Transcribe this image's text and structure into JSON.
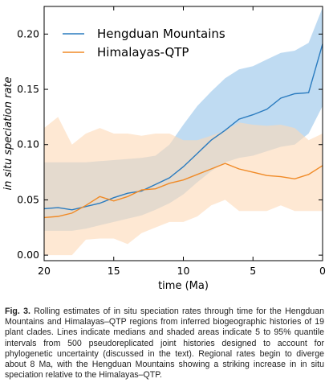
{
  "chart_data": {
    "type": "area",
    "xlabel": "time (Ma)",
    "ylabel": "in situ speciation rate",
    "xlim": [
      20,
      0
    ],
    "ylim": [
      -0.005,
      0.225
    ],
    "x_ticks": [
      20,
      15,
      10,
      5,
      0
    ],
    "y_ticks": [
      0.0,
      0.05,
      0.1,
      0.15,
      0.2
    ],
    "x_tick_labels": [
      "20",
      "15",
      "10",
      "5",
      "0"
    ],
    "y_tick_labels": [
      "0.00",
      "0.05",
      "0.10",
      "0.15",
      "0.20"
    ],
    "grid": false,
    "legend_position": "top-left",
    "series": [
      {
        "name": "Hengduan Mountains",
        "color": "#2a7bbf",
        "band_color": "#aacfee",
        "x": [
          20,
          19,
          18,
          17,
          16,
          15,
          14,
          13,
          12,
          11,
          10,
          9,
          8,
          7,
          6,
          5,
          4,
          3,
          2,
          1,
          0
        ],
        "median": [
          0.042,
          0.043,
          0.041,
          0.044,
          0.047,
          0.052,
          0.056,
          0.058,
          0.064,
          0.07,
          0.08,
          0.092,
          0.104,
          0.113,
          0.123,
          0.127,
          0.132,
          0.142,
          0.146,
          0.147,
          0.191
        ],
        "lower": [
          0.022,
          0.022,
          0.022,
          0.024,
          0.027,
          0.03,
          0.033,
          0.036,
          0.041,
          0.047,
          0.055,
          0.066,
          0.076,
          0.084,
          0.088,
          0.09,
          0.094,
          0.098,
          0.1,
          0.11,
          0.135
        ],
        "upper": [
          0.084,
          0.084,
          0.084,
          0.084,
          0.085,
          0.086,
          0.087,
          0.088,
          0.09,
          0.1,
          0.118,
          0.135,
          0.148,
          0.16,
          0.168,
          0.171,
          0.177,
          0.183,
          0.185,
          0.192,
          0.224
        ]
      },
      {
        "name": "Himalayas-QTP",
        "color": "#f08a26",
        "band_color": "#fdd9b5",
        "x": [
          20,
          19,
          18,
          17,
          16,
          15,
          14,
          13,
          12,
          11,
          10,
          9,
          8,
          7,
          6,
          5,
          4,
          3,
          2,
          1,
          0
        ],
        "median": [
          0.034,
          0.035,
          0.038,
          0.045,
          0.053,
          0.049,
          0.053,
          0.059,
          0.06,
          0.065,
          0.068,
          0.073,
          0.078,
          0.083,
          0.078,
          0.075,
          0.072,
          0.071,
          0.069,
          0.073,
          0.081
        ],
        "lower": [
          0.0,
          0.0,
          0.0,
          0.014,
          0.015,
          0.015,
          0.01,
          0.02,
          0.025,
          0.03,
          0.03,
          0.035,
          0.045,
          0.05,
          0.04,
          0.04,
          0.04,
          0.045,
          0.04,
          0.04,
          0.04
        ],
        "upper": [
          0.115,
          0.125,
          0.1,
          0.11,
          0.115,
          0.11,
          0.11,
          0.108,
          0.11,
          0.11,
          0.104,
          0.104,
          0.108,
          0.113,
          0.12,
          0.118,
          0.117,
          0.118,
          0.115,
          0.104,
          0.11
        ]
      }
    ]
  },
  "caption": {
    "label": "Fig. 3.",
    "text": "Rolling estimates of in situ speciation rates through time for the Hengduan Mountains and Himalayas–QTP regions from inferred biogeographic histories of 19 plant clades. Lines indicate medians and shaded areas indicate 5 to 95% quantile intervals from 500 pseudoreplicated joint histories designed to account for phylogenetic uncertainty (discussed in the text). Regional rates begin to diverge about 8 Ma, with the Hengduan Mountains showing a striking increase in in situ speciation relative to the Himalayas–QTP."
  }
}
